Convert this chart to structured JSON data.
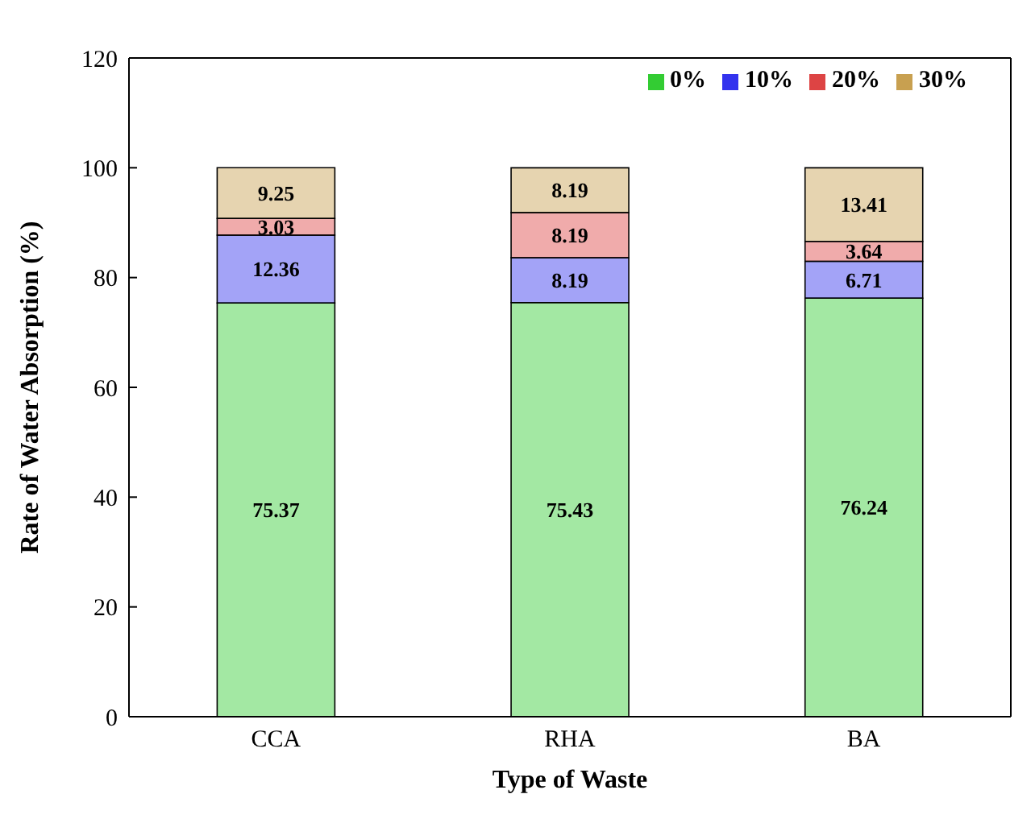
{
  "chart_data": {
    "type": "bar",
    "stacked": true,
    "xlabel": "Type of Waste",
    "ylabel": "Rate of Water Absorption (%)",
    "categories": [
      "CCA",
      "RHA",
      "BA"
    ],
    "series": [
      {
        "name": "0%",
        "color": "#33cc33",
        "values": [
          75.37,
          75.43,
          76.24
        ]
      },
      {
        "name": "10%",
        "color": "#3333ee",
        "values": [
          12.36,
          8.19,
          6.71
        ]
      },
      {
        "name": "20%",
        "color": "#dd4444",
        "values": [
          3.03,
          8.19,
          3.64
        ]
      },
      {
        "name": "30%",
        "color": "#c8a050",
        "values": [
          9.25,
          8.19,
          13.41
        ]
      }
    ],
    "ylim": [
      0,
      120
    ],
    "yticks": [
      0,
      20,
      40,
      60,
      80,
      100,
      120
    ],
    "data_labels": true,
    "legend": "top right",
    "grid": false
  }
}
